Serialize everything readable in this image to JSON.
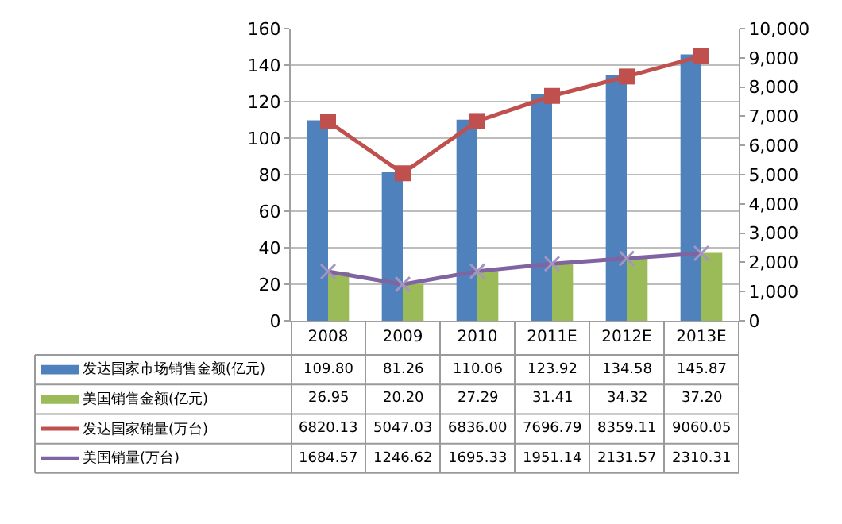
{
  "chart_data": {
    "type": "bar",
    "categories": [
      "2008",
      "2009",
      "2010",
      "2011E",
      "2012E",
      "2013E"
    ],
    "series": [
      {
        "name": "发达国家市场销售金额(亿元)",
        "color": "#4f81bd",
        "values": [
          109.8,
          81.26,
          110.06,
          123.92,
          134.58,
          145.87
        ],
        "value_labels": [
          "109.80",
          "81.26",
          "110.06",
          "123.92",
          "134.58",
          "145.87"
        ]
      },
      {
        "name": "美国销售金额(亿元)",
        "color": "#9bbb59",
        "values": [
          26.95,
          20.2,
          27.29,
          31.41,
          34.32,
          37.2
        ],
        "value_labels": [
          "26.95",
          "20.20",
          "27.29",
          "31.41",
          "34.32",
          "37.20"
        ]
      },
      {
        "name": "发达国家销量(万台)",
        "type": "line",
        "axis": "y2",
        "marker": "square",
        "color": "#c0504d",
        "values": [
          6820.13,
          5047.03,
          6836.0,
          7696.79,
          8359.11,
          9060.05
        ],
        "value_labels": [
          "6820.13",
          "5047.03",
          "6836.00",
          "7696.79",
          "8359.11",
          "9060.05"
        ]
      },
      {
        "name": "美国销量(万台)",
        "type": "line",
        "axis": "y2",
        "marker": "cross",
        "color": "#8064a2",
        "values": [
          1684.57,
          1246.62,
          1695.33,
          1951.14,
          2131.57,
          2310.31
        ],
        "value_labels": [
          "1684.57",
          "1246.62",
          "1695.33",
          "1951.14",
          "2131.57",
          "2310.31"
        ]
      }
    ],
    "ylim": [
      0,
      160
    ],
    "yticks": [
      0,
      20,
      40,
      60,
      80,
      100,
      120,
      140,
      160
    ],
    "y2lim": [
      0,
      10000
    ],
    "y2ticks": [
      0,
      {
        "value": 1000,
        "label": "1,000"
      },
      {
        "value": 2000,
        "label": "2,000"
      },
      {
        "value": 3000,
        "label": "3,000"
      },
      {
        "value": 4000,
        "label": "4,000"
      },
      {
        "value": 5000,
        "label": "5,000"
      },
      {
        "value": 6000,
        "label": "6,000"
      },
      {
        "value": 7000,
        "label": "7,000"
      },
      {
        "value": 8000,
        "label": "8,000"
      },
      {
        "value": 9000,
        "label": "9,000"
      },
      {
        "value": 10000,
        "label": "10,000"
      }
    ],
    "grid": "y",
    "legend": "bottom left"
  }
}
